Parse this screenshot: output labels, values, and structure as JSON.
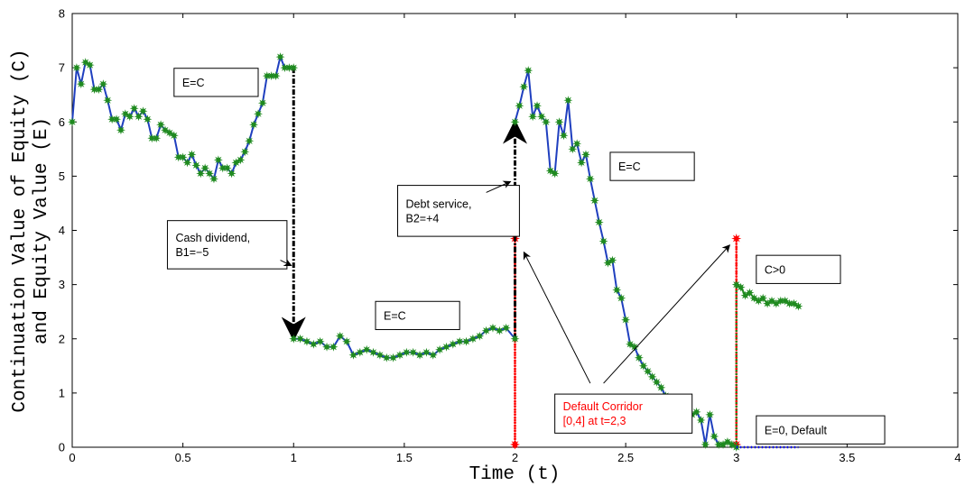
{
  "colors": {
    "equity_line": "#1f3fbf",
    "equity_marker": "#1f8a1f",
    "continuation": "#1f8a1f",
    "jump": "#000000",
    "corridor": "#ff0000",
    "default_line": "#0000ff"
  },
  "chart_data": {
    "type": "line",
    "xlabel": "Time (t)",
    "ylabel_lines": [
      "Continuation Value of Equity (C)",
      "and Equity Value (E)"
    ],
    "xlim": [
      0,
      4
    ],
    "ylim": [
      0,
      8
    ],
    "xticks": [
      0,
      0.5,
      1,
      1.5,
      2,
      2.5,
      3,
      3.5,
      4
    ],
    "xtick_labels": [
      "0",
      "0.5",
      "1",
      "1.5",
      "2",
      "2.5",
      "3",
      "3.5",
      "4"
    ],
    "yticks": [
      0,
      1,
      2,
      3,
      4,
      5,
      6,
      7,
      8
    ],
    "ytick_labels": [
      "0",
      "1",
      "2",
      "3",
      "4",
      "5",
      "6",
      "7",
      "8"
    ],
    "grid": false,
    "series": [
      {
        "role": "equity-segment-1",
        "x": [
          0,
          0.02,
          0.04,
          0.06,
          0.08,
          0.1,
          0.12,
          0.14,
          0.16,
          0.18,
          0.2,
          0.22,
          0.24,
          0.26,
          0.28,
          0.3,
          0.32,
          0.34,
          0.36,
          0.38,
          0.4,
          0.42,
          0.44,
          0.46,
          0.48,
          0.5,
          0.52,
          0.54,
          0.56,
          0.58,
          0.6,
          0.62,
          0.64,
          0.66,
          0.68,
          0.7,
          0.72,
          0.74,
          0.76,
          0.78,
          0.8,
          0.82,
          0.84,
          0.86,
          0.88,
          0.9,
          0.92,
          0.94,
          0.96,
          0.98,
          1.0
        ],
        "y": [
          6.0,
          7.0,
          6.7,
          7.1,
          7.05,
          6.6,
          6.6,
          6.7,
          6.4,
          6.05,
          6.05,
          5.85,
          6.15,
          6.1,
          6.25,
          6.1,
          6.2,
          6.05,
          5.7,
          5.7,
          5.95,
          5.85,
          5.8,
          5.75,
          5.35,
          5.35,
          5.25,
          5.4,
          5.2,
          5.05,
          5.15,
          5.05,
          4.95,
          5.3,
          5.15,
          5.15,
          5.05,
          5.25,
          5.3,
          5.45,
          5.65,
          5.95,
          6.15,
          6.35,
          6.85,
          6.85,
          6.85,
          7.2,
          7.0,
          7.0,
          7.0
        ]
      },
      {
        "role": "equity-segment-2",
        "x": [
          1.0,
          1.03,
          1.06,
          1.09,
          1.12,
          1.15,
          1.18,
          1.21,
          1.24,
          1.27,
          1.3,
          1.33,
          1.36,
          1.39,
          1.42,
          1.45,
          1.48,
          1.51,
          1.54,
          1.57,
          1.6,
          1.63,
          1.66,
          1.69,
          1.72,
          1.75,
          1.78,
          1.81,
          1.84,
          1.87,
          1.9,
          1.93,
          1.96,
          2.0
        ],
        "y": [
          2.0,
          2.0,
          1.95,
          1.9,
          1.95,
          1.85,
          1.85,
          2.05,
          1.95,
          1.7,
          1.75,
          1.8,
          1.75,
          1.7,
          1.65,
          1.65,
          1.7,
          1.75,
          1.75,
          1.7,
          1.75,
          1.7,
          1.8,
          1.85,
          1.9,
          1.95,
          1.95,
          2.0,
          2.05,
          2.15,
          2.2,
          2.15,
          2.2,
          2.0
        ]
      },
      {
        "role": "equity-segment-3",
        "x": [
          2.0,
          2.02,
          2.04,
          2.06,
          2.08,
          2.1,
          2.12,
          2.14,
          2.16,
          2.18,
          2.2,
          2.22,
          2.24,
          2.26,
          2.28,
          2.3,
          2.32,
          2.34,
          2.36,
          2.38,
          2.4,
          2.42,
          2.44,
          2.46,
          2.48,
          2.5,
          2.52,
          2.54,
          2.56,
          2.58,
          2.6,
          2.62,
          2.64,
          2.66,
          2.68,
          2.7,
          2.72,
          2.74,
          2.76,
          2.78,
          2.8,
          2.82,
          2.84,
          2.86,
          2.88,
          2.9,
          2.92,
          2.94,
          2.96,
          2.98,
          3.0
        ],
        "y": [
          6.0,
          6.3,
          6.65,
          6.95,
          6.1,
          6.3,
          6.1,
          6.0,
          5.1,
          5.05,
          6.0,
          5.75,
          6.4,
          5.5,
          5.6,
          5.25,
          5.4,
          4.95,
          4.55,
          4.15,
          3.8,
          3.4,
          3.45,
          2.9,
          2.75,
          2.35,
          1.9,
          1.85,
          1.65,
          1.5,
          1.4,
          1.3,
          1.2,
          1.1,
          0.95,
          0.9,
          0.85,
          0.75,
          0.7,
          0.7,
          0.6,
          0.65,
          0.5,
          0.05,
          0.6,
          0.2,
          0.05,
          0.05,
          0.1,
          0.05,
          0.0
        ]
      },
      {
        "role": "continuation-after-default",
        "x": [
          3.0,
          3.02,
          3.04,
          3.06,
          3.08,
          3.1,
          3.12,
          3.14,
          3.16,
          3.18,
          3.2,
          3.22,
          3.24,
          3.26,
          3.28
        ],
        "y": [
          3.0,
          2.95,
          2.8,
          2.85,
          2.75,
          2.7,
          2.75,
          2.65,
          2.7,
          2.65,
          2.7,
          2.7,
          2.65,
          2.65,
          2.6
        ]
      },
      {
        "role": "equity-zero-after-default",
        "x": [
          3.0,
          3.28
        ],
        "y": [
          0,
          0
        ]
      }
    ],
    "jumps": [
      {
        "name": "cash-dividend",
        "x": 1.0,
        "from": 7.0,
        "to": 2.0
      },
      {
        "name": "debt-service",
        "x": 2.0,
        "from": 2.0,
        "to": 6.0
      }
    ],
    "corridors": [
      {
        "name": "corridor-t2",
        "x": 2.0,
        "from": 0.0,
        "to": 3.85
      },
      {
        "name": "corridor-t3",
        "x": 3.0,
        "from": 0.0,
        "to": 3.85
      }
    ],
    "annotations": [
      {
        "name": "label-e-equals-c-1",
        "lines": [
          "E=C"
        ],
        "x": 0.46,
        "y": 6.99,
        "w": 0.38,
        "h": 0.52,
        "color": "#000000"
      },
      {
        "name": "label-cash-dividend",
        "lines": [
          "Cash dividend,",
          "B1=−5"
        ],
        "x": 0.43,
        "y": 4.18,
        "w": 0.54,
        "h": 0.89,
        "color": "#000000",
        "arrow": {
          "from": [
            0.94,
            3.45
          ],
          "to": [
            0.99,
            3.35
          ]
        }
      },
      {
        "name": "label-e-equals-c-2",
        "lines": [
          "E=C"
        ],
        "x": 1.37,
        "y": 2.69,
        "w": 0.38,
        "h": 0.52,
        "color": "#000000"
      },
      {
        "name": "label-debt-service",
        "lines": [
          "Debt service,",
          "B2=+4"
        ],
        "x": 1.47,
        "y": 4.83,
        "w": 0.55,
        "h": 0.94,
        "color": "#000000",
        "arrow": {
          "from": [
            1.87,
            4.7
          ],
          "to": [
            1.98,
            4.9
          ]
        }
      },
      {
        "name": "label-e-equals-c-3",
        "lines": [
          "E=C"
        ],
        "x": 2.43,
        "y": 5.44,
        "w": 0.38,
        "h": 0.52,
        "color": "#000000"
      },
      {
        "name": "label-c-greater-0",
        "lines": [
          "C>0"
        ],
        "x": 3.09,
        "y": 3.54,
        "w": 0.38,
        "h": 0.52,
        "color": "#000000"
      },
      {
        "name": "label-default-corridor",
        "lines": [
          "Default Corridor",
          "[0,4] at t=2,3"
        ],
        "x": 2.18,
        "y": 0.98,
        "w": 0.62,
        "h": 0.72,
        "color": "#ff0000",
        "arrows": [
          {
            "from": [
              2.34,
              1.18
            ],
            "to": [
              2.04,
              3.6
            ]
          },
          {
            "from": [
              2.4,
              1.18
            ],
            "to": [
              2.97,
              3.73
            ]
          }
        ]
      },
      {
        "name": "label-e-zero-default",
        "lines": [
          "E=0, Default"
        ],
        "x": 3.09,
        "y": 0.58,
        "w": 0.58,
        "h": 0.52,
        "color": "#000000"
      }
    ]
  }
}
